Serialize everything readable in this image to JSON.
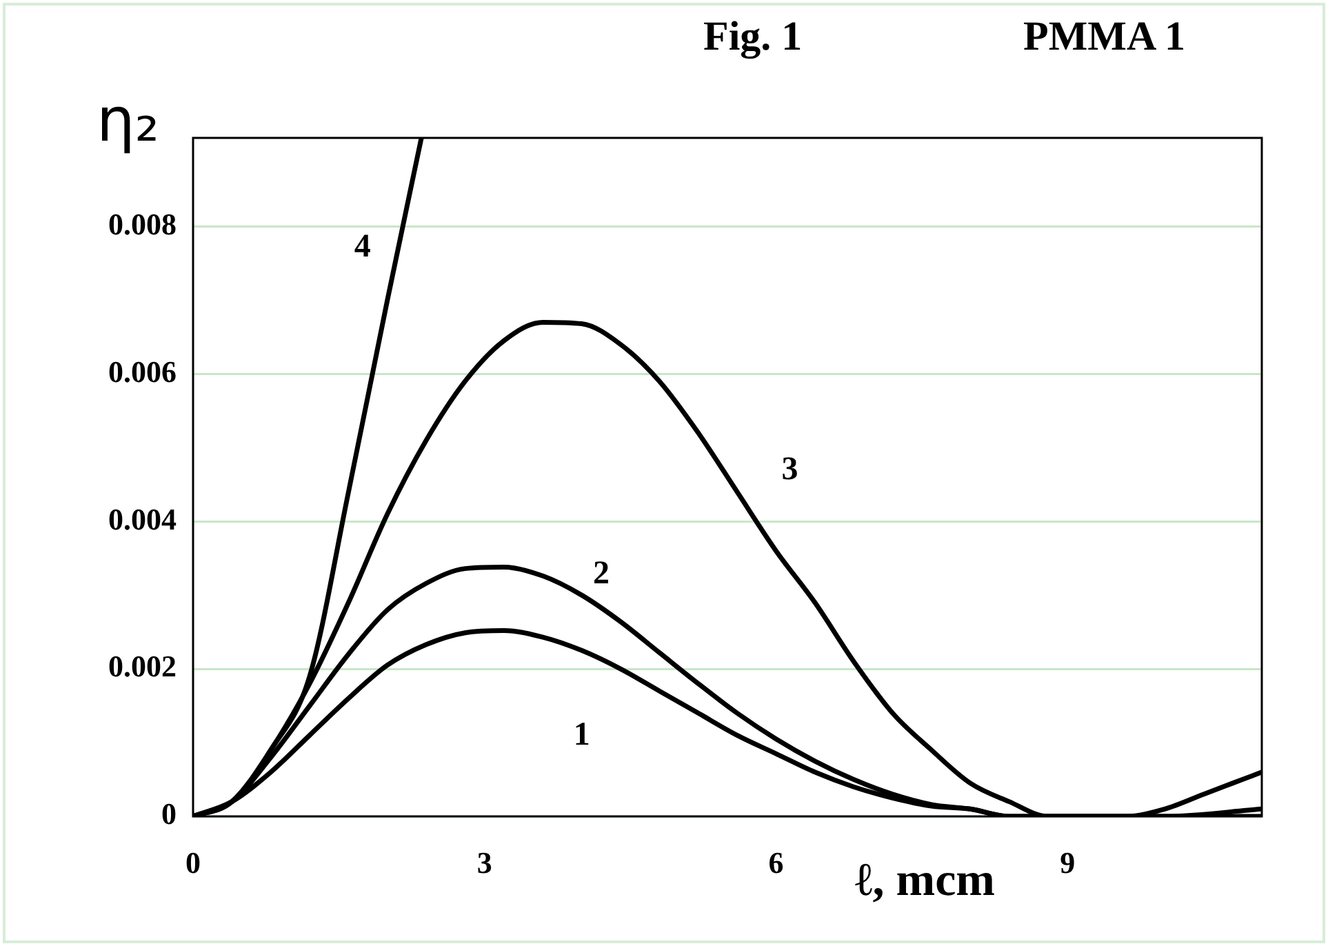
{
  "chart_data": {
    "type": "line",
    "title": "Fig. 1",
    "subtitle": "PMMA 1",
    "xlabel": "ℓ, mcm",
    "ylabel": "η₂",
    "xlim": [
      0,
      11
    ],
    "xticks": [
      0,
      3,
      6,
      9
    ],
    "ylim": [
      0,
      0.0092
    ],
    "yticks": [
      0,
      0.002,
      0.004,
      0.006,
      0.008
    ],
    "grid": "y",
    "legend": false,
    "marker": "none",
    "line_style": "solid",
    "series": [
      {
        "name": "1",
        "color": "#000000",
        "x": [
          0,
          0.4,
          0.8,
          1.2,
          1.6,
          2,
          2.4,
          2.8,
          3.2,
          3.6,
          4,
          4.4,
          4.8,
          5.2,
          5.6,
          6,
          6.4,
          6.8,
          7.2,
          7.6,
          8,
          8.4,
          9,
          10,
          11
        ],
        "values": [
          0,
          0.0002,
          0.0006,
          0.0011,
          0.0016,
          0.00205,
          0.00233,
          0.00249,
          0.00252,
          0.00243,
          0.00225,
          0.002,
          0.0017,
          0.0014,
          0.0011,
          0.00085,
          0.0006,
          0.0004,
          0.00025,
          0.00014,
          0.0001,
          0,
          0,
          0,
          0.0001
        ]
      },
      {
        "name": "2",
        "color": "#000000",
        "x": [
          0,
          0.4,
          0.8,
          1.2,
          1.6,
          2,
          2.4,
          2.8,
          3.2,
          3.6,
          4,
          4.4,
          4.8,
          5.2,
          5.6,
          6,
          6.4,
          6.8,
          7.2,
          7.6,
          8,
          8.4,
          9,
          10,
          11
        ],
        "values": [
          0,
          0.0002,
          0.0008,
          0.0015,
          0.0022,
          0.0028,
          0.00316,
          0.00336,
          0.00338,
          0.00326,
          0.003,
          0.00264,
          0.00222,
          0.0018,
          0.0014,
          0.00105,
          0.00075,
          0.0005,
          0.0003,
          0.00016,
          0.0001,
          0,
          0,
          0,
          0
        ]
      },
      {
        "name": "3",
        "color": "#000000",
        "x": [
          0,
          0.4,
          0.8,
          1.2,
          1.6,
          2,
          2.4,
          2.8,
          3.2,
          3.6,
          4,
          4.4,
          4.8,
          5.2,
          5.6,
          6,
          6.4,
          6.8,
          7.2,
          7.6,
          8,
          8.4,
          8.8,
          9.2,
          9.6,
          10,
          10.4,
          10.8,
          11
        ],
        "values": [
          0,
          0.0002,
          0.0009,
          0.0018,
          0.0029,
          0.0041,
          0.0051,
          0.0059,
          0.00645,
          0.0067,
          0.00668,
          0.0064,
          0.0059,
          0.0052,
          0.0044,
          0.0036,
          0.0029,
          0.0021,
          0.0014,
          0.0009,
          0.00045,
          0.0002,
          0,
          0,
          0,
          0.0001,
          0.0003,
          0.0005,
          0.0006
        ]
      },
      {
        "name": "4",
        "color": "#000000",
        "x": [
          0,
          0.4,
          0.8,
          1.2,
          1.6,
          2,
          2.35
        ],
        "values": [
          0,
          0.0002,
          0.0009,
          0.0019,
          0.0044,
          0.007,
          0.0092
        ]
      }
    ]
  }
}
